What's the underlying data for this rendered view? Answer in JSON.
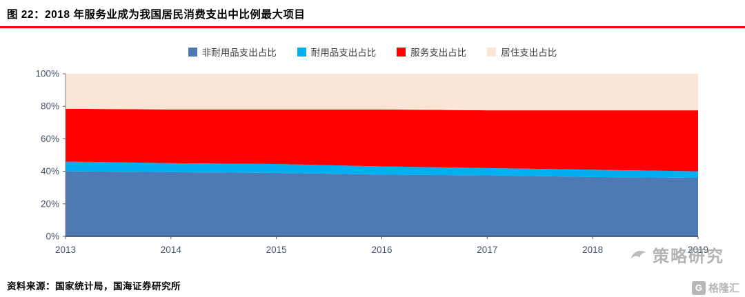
{
  "header": {
    "title": "图 22：2018 年服务业成为我国居民消费支出中比例最大项目"
  },
  "footer": {
    "source": "资料来源：国家统计局，国海证券研究所"
  },
  "watermark": {
    "text": "策略研究",
    "logo_letter": "G",
    "logo_text": "格隆汇"
  },
  "chart_data": {
    "type": "area",
    "stacked": true,
    "title": "图 22：2018 年服务业成为我国居民消费支出中比例最大项目",
    "x": [
      2013,
      2014,
      2015,
      2016,
      2017,
      2018,
      2019
    ],
    "series": [
      {
        "name": "非耐用品支出占比",
        "color": "#4D79B5",
        "values": [
          40,
          39.5,
          39,
          38,
          37.5,
          36.5,
          36
        ]
      },
      {
        "name": "耐用品支出占比",
        "color": "#00B0F0",
        "values": [
          6,
          5.5,
          5.5,
          5,
          4.5,
          4.5,
          4
        ]
      },
      {
        "name": "服务支出占比",
        "color": "#FF0000",
        "values": [
          32.5,
          33,
          33.5,
          35,
          35.5,
          36.5,
          37.5
        ]
      },
      {
        "name": "居住支出占比",
        "color": "#FBE5D6",
        "values": [
          21.5,
          22,
          22,
          22,
          22.5,
          22.5,
          22.5
        ]
      }
    ],
    "xlabel": "",
    "ylabel": "",
    "ylim": [
      0,
      100
    ],
    "ytick_step": 20,
    "ytick_suffix": "%",
    "legend_position": "top",
    "grid": false
  }
}
